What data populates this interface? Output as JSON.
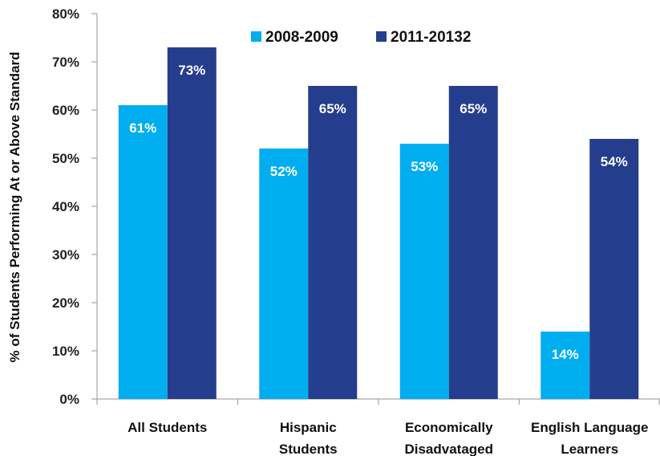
{
  "chart_data": {
    "type": "bar",
    "ylabel": "% of Students Performing At or Above Standard",
    "xlabel": "",
    "ylim": [
      0,
      80
    ],
    "yticks": [
      0,
      10,
      20,
      30,
      40,
      50,
      60,
      70,
      80
    ],
    "ytick_suffix": "%",
    "categories": [
      [
        "All Students"
      ],
      [
        "Hispanic",
        "Students"
      ],
      [
        "Economically",
        "Disadvataged"
      ],
      [
        "English Language",
        "Learners"
      ]
    ],
    "series": [
      {
        "name": "2008-2009",
        "values": [
          61,
          52,
          53,
          14
        ],
        "labels": [
          "61%",
          "52%",
          "53%",
          "14%"
        ],
        "color": "#00AEEF"
      },
      {
        "name": "2011-20132",
        "values": [
          73,
          65,
          65,
          54
        ],
        "labels": [
          "73%",
          "65%",
          "65%",
          "54%"
        ],
        "color": "#253D8D"
      }
    ],
    "legend_position": "top",
    "grid": false
  }
}
